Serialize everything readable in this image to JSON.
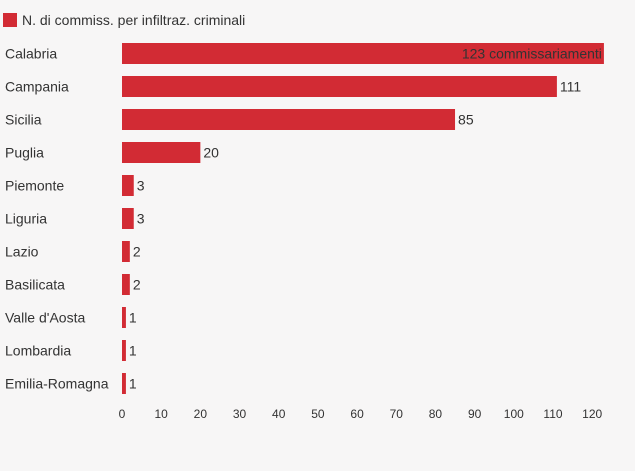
{
  "chart_data": {
    "type": "bar",
    "orientation": "horizontal",
    "legend": {
      "label": "N. di commiss. per infiltraz. criminali",
      "position": "top-left"
    },
    "series": [
      {
        "name": "N. di commiss. per infiltraz. criminali",
        "color": "#d22b34",
        "values": [
          123,
          111,
          85,
          20,
          3,
          3,
          2,
          2,
          1,
          1,
          1
        ]
      }
    ],
    "categories": [
      "Calabria",
      "Campania",
      "Sicilia",
      "Puglia",
      "Piemonte",
      "Liguria",
      "Lazio",
      "Basilicata",
      "Valle d'Aosta",
      "Lombardia",
      "Emilia-Romagna"
    ],
    "first_value_label": "123 commissariamenti",
    "x_ticks": [
      "0",
      "10",
      "20",
      "30",
      "40",
      "50",
      "60",
      "70",
      "80",
      "90",
      "100",
      "110",
      "120"
    ],
    "xlim": [
      0,
      122
    ],
    "grid": false,
    "background": "#f7f6f6"
  }
}
